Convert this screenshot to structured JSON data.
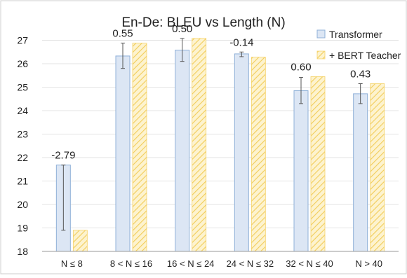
{
  "chart_data": {
    "type": "bar",
    "title": "En-De: BLEU vs Length (N)",
    "xlabel": "",
    "ylabel": "",
    "ylim": [
      18,
      27.5
    ],
    "yticks": [
      18,
      19,
      20,
      21,
      22,
      23,
      24,
      25,
      26,
      27
    ],
    "grid": true,
    "legend_position": "top-right",
    "categories": [
      "N ≤ 8",
      "8 < N ≤ 16",
      "16 < N ≤ 24",
      "24 < N ≤ 32",
      "32 < N ≤ 40",
      "N > 40"
    ],
    "series": [
      {
        "name": "Transformer",
        "values": [
          21.68,
          26.33,
          26.58,
          26.42,
          24.85,
          24.72
        ],
        "error_low": [
          18.9,
          25.8,
          26.1,
          26.3,
          24.3,
          24.3
        ],
        "error_high": [
          21.68,
          26.88,
          27.08,
          26.5,
          25.42,
          25.15
        ],
        "fill": "#dce6f4",
        "stroke": "#8fb0d8"
      },
      {
        "name": "+ BERT Teacher",
        "values": [
          18.9,
          26.88,
          27.08,
          26.28,
          25.45,
          25.15
        ],
        "fill": "#fdf0c2",
        "stroke": "#f2c94c",
        "pattern": "hatch"
      }
    ],
    "annotations": [
      "-2.79",
      "0.55",
      "0.50",
      "-0.14",
      "0.60",
      "0.43"
    ]
  }
}
